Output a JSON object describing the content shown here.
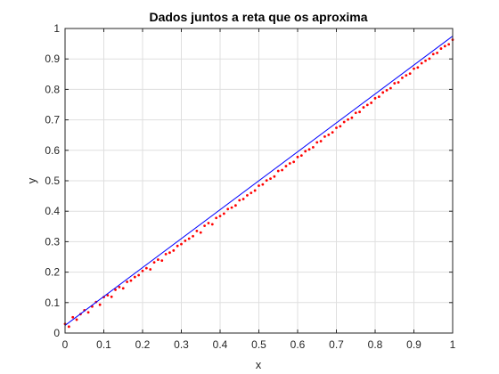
{
  "chart_data": {
    "type": "scatter",
    "title": "Dados juntos a reta que os aproxima",
    "xlabel": "x",
    "ylabel": "y",
    "xlim": [
      0,
      1
    ],
    "ylim": [
      0,
      1
    ],
    "xticks": [
      "0",
      "0.1",
      "0.2",
      "0.3",
      "0.4",
      "0.5",
      "0.6",
      "0.7",
      "0.8",
      "0.9",
      "1"
    ],
    "yticks": [
      "0",
      "0.1",
      "0.2",
      "0.3",
      "0.4",
      "0.5",
      "0.6",
      "0.7",
      "0.8",
      "0.9",
      "1"
    ],
    "grid": true,
    "legend": "none",
    "series": [
      {
        "kind": "points",
        "color": "#ff0000",
        "marker": "dot",
        "x": [
          0.0,
          0.01,
          0.02,
          0.03,
          0.04,
          0.05,
          0.06,
          0.07,
          0.08,
          0.09,
          0.1,
          0.11,
          0.12,
          0.13,
          0.14,
          0.15,
          0.16,
          0.17,
          0.18,
          0.19,
          0.2,
          0.21,
          0.22,
          0.23,
          0.24,
          0.25,
          0.26,
          0.27,
          0.28,
          0.29,
          0.3,
          0.31,
          0.32,
          0.33,
          0.34,
          0.35,
          0.36,
          0.37,
          0.38,
          0.39,
          0.4,
          0.41,
          0.42,
          0.43,
          0.44,
          0.45,
          0.46,
          0.47,
          0.48,
          0.49,
          0.5,
          0.51,
          0.52,
          0.53,
          0.54,
          0.55,
          0.56,
          0.57,
          0.58,
          0.59,
          0.6,
          0.61,
          0.62,
          0.63,
          0.64,
          0.65,
          0.66,
          0.67,
          0.68,
          0.69,
          0.7,
          0.71,
          0.72,
          0.73,
          0.74,
          0.75,
          0.76,
          0.77,
          0.78,
          0.79,
          0.8,
          0.81,
          0.82,
          0.83,
          0.84,
          0.85,
          0.86,
          0.87,
          0.88,
          0.89,
          0.9,
          0.91,
          0.92,
          0.93,
          0.94,
          0.95,
          0.96,
          0.97,
          0.98,
          0.99,
          1.0
        ],
        "y": [
          0.03,
          0.021,
          0.052,
          0.044,
          0.062,
          0.075,
          0.068,
          0.087,
          0.102,
          0.093,
          0.118,
          0.124,
          0.119,
          0.142,
          0.151,
          0.147,
          0.168,
          0.172,
          0.184,
          0.19,
          0.204,
          0.213,
          0.209,
          0.232,
          0.241,
          0.238,
          0.259,
          0.264,
          0.271,
          0.286,
          0.292,
          0.303,
          0.31,
          0.318,
          0.335,
          0.33,
          0.352,
          0.361,
          0.357,
          0.378,
          0.384,
          0.392,
          0.407,
          0.412,
          0.419,
          0.436,
          0.44,
          0.452,
          0.46,
          0.468,
          0.484,
          0.488,
          0.501,
          0.507,
          0.514,
          0.532,
          0.535,
          0.548,
          0.557,
          0.562,
          0.578,
          0.583,
          0.597,
          0.603,
          0.61,
          0.626,
          0.63,
          0.645,
          0.651,
          0.659,
          0.674,
          0.679,
          0.693,
          0.701,
          0.707,
          0.723,
          0.726,
          0.741,
          0.749,
          0.756,
          0.771,
          0.776,
          0.79,
          0.797,
          0.804,
          0.82,
          0.823,
          0.838,
          0.846,
          0.852,
          0.868,
          0.872,
          0.886,
          0.894,
          0.901,
          0.916,
          0.92,
          0.934,
          0.942,
          0.948,
          0.963
        ]
      },
      {
        "kind": "line",
        "color": "#0000ff",
        "x": [
          0,
          1
        ],
        "y": [
          0.025,
          0.975
        ]
      }
    ]
  }
}
